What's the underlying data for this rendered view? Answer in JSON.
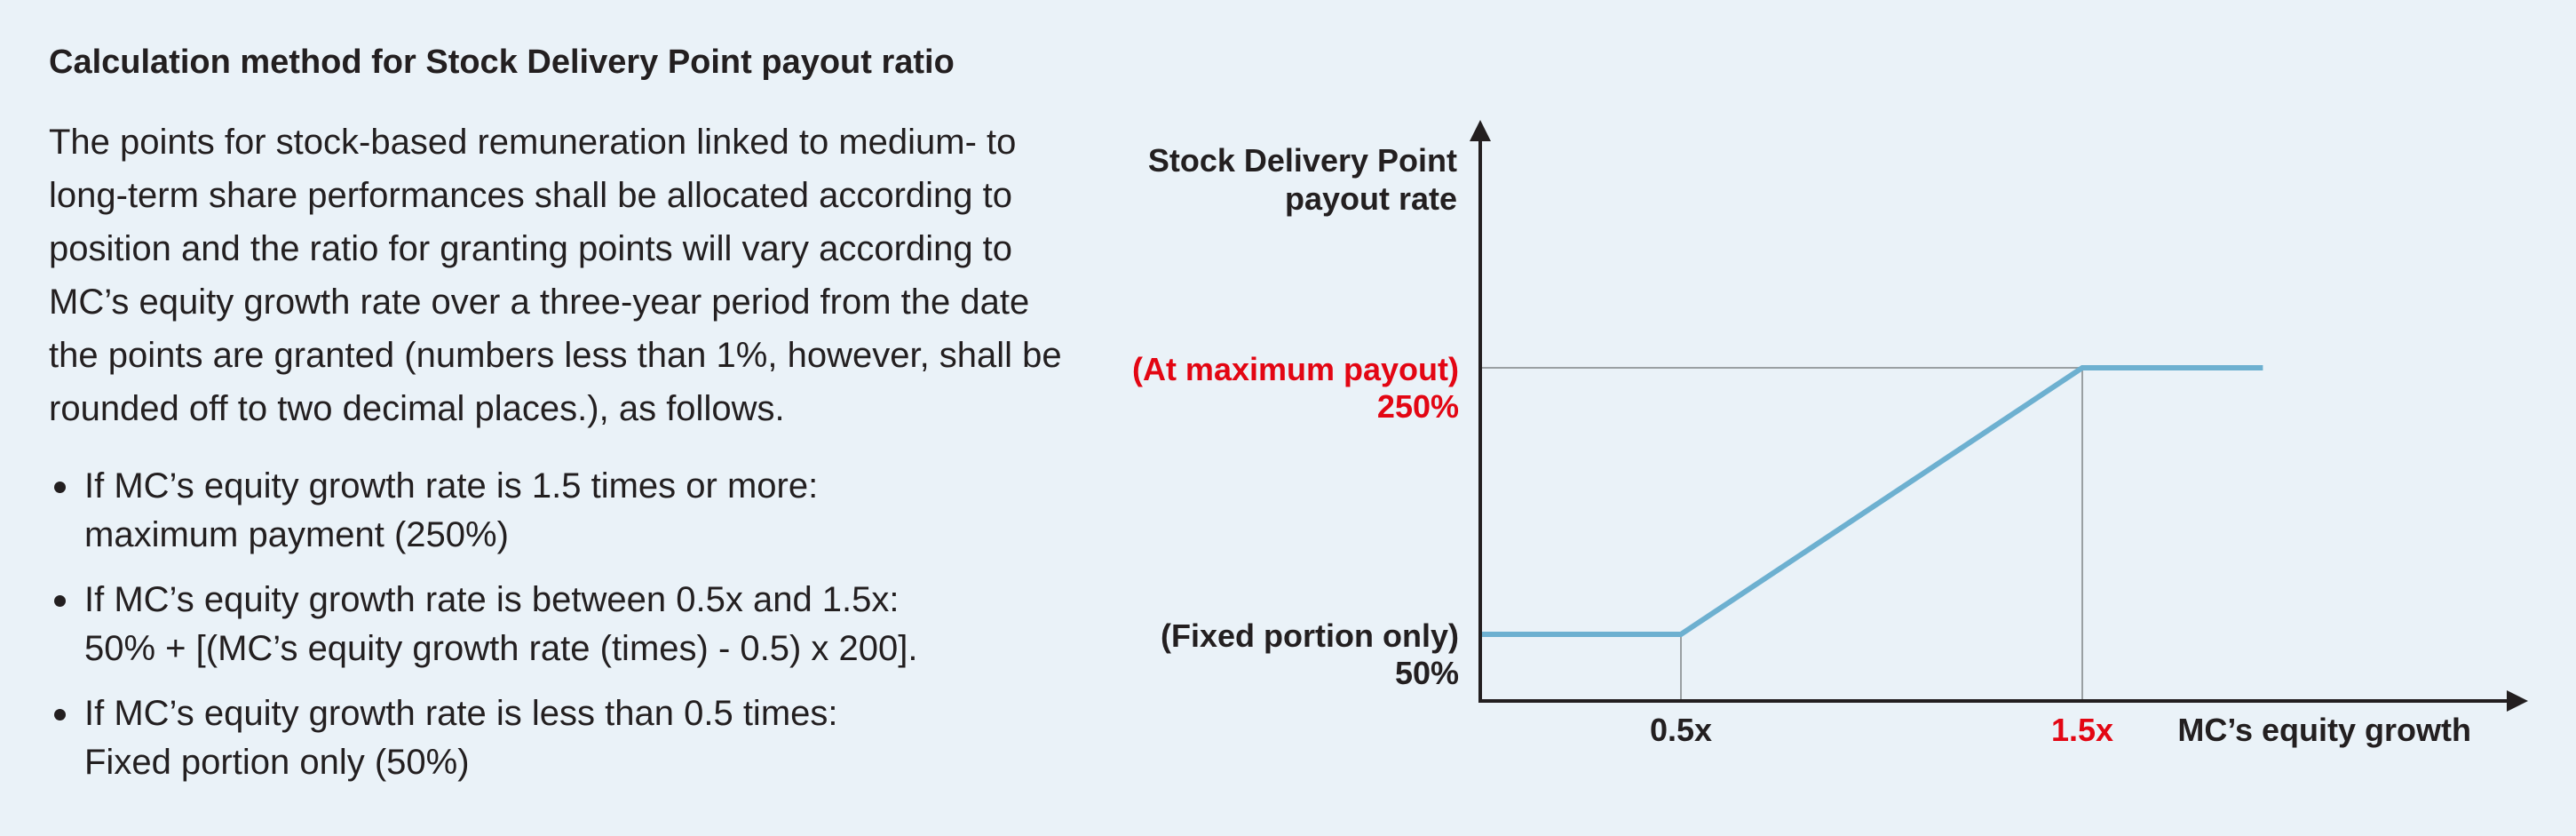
{
  "text": {
    "heading": "Calculation method for Stock Delivery Point payout ratio",
    "paragraph": "The points for stock-based remuneration linked to medium- to long-term share performances shall be allocated according to position and the ratio for granting points will vary according to MC’s equity growth rate over a three-year period from the date the points are granted (numbers less than 1%, however, shall be rounded off to two decimal places.), as follows.",
    "bullets": [
      {
        "line1": "If MC’s equity growth rate is 1.5 times or more:",
        "line2": "maximum payment (250%)"
      },
      {
        "line1": "If MC’s equity growth rate is between 0.5x and 1.5x:",
        "line2": "50% + [(MC’s equity growth rate (times) - 0.5) x 200]."
      },
      {
        "line1": "If MC’s equity growth rate is less than 0.5 times:",
        "line2": "Fixed portion only (50%)"
      }
    ]
  },
  "chart_data": {
    "type": "line",
    "ylabel": [
      "Stock Delivery Point",
      "payout rate"
    ],
    "xlabel": "MC’s equity growth",
    "series": [
      {
        "points": [
          [
            0,
            50
          ],
          [
            0.5,
            50
          ],
          [
            1.5,
            250
          ],
          [
            1.95,
            250
          ]
        ]
      }
    ],
    "x_ticks": [
      {
        "value": 0.5,
        "label": "0.5x",
        "highlight": false
      },
      {
        "value": 1.5,
        "label": "1.5x",
        "highlight": true
      }
    ],
    "y_ticks": [
      {
        "value": 250,
        "lines": [
          "(At maximum payout)",
          "250%"
        ],
        "highlight": true
      },
      {
        "value": 50,
        "lines": [
          "(Fixed portion only)",
          "50%"
        ],
        "highlight": false
      }
    ],
    "xlim": [
      0,
      2.5
    ],
    "ylim": [
      0,
      330
    ],
    "colors": {
      "line": "#6db0d0",
      "axis": "#231f20",
      "guide": "#9aa0a3",
      "highlight": "#e30613",
      "text": "#231f20"
    }
  }
}
